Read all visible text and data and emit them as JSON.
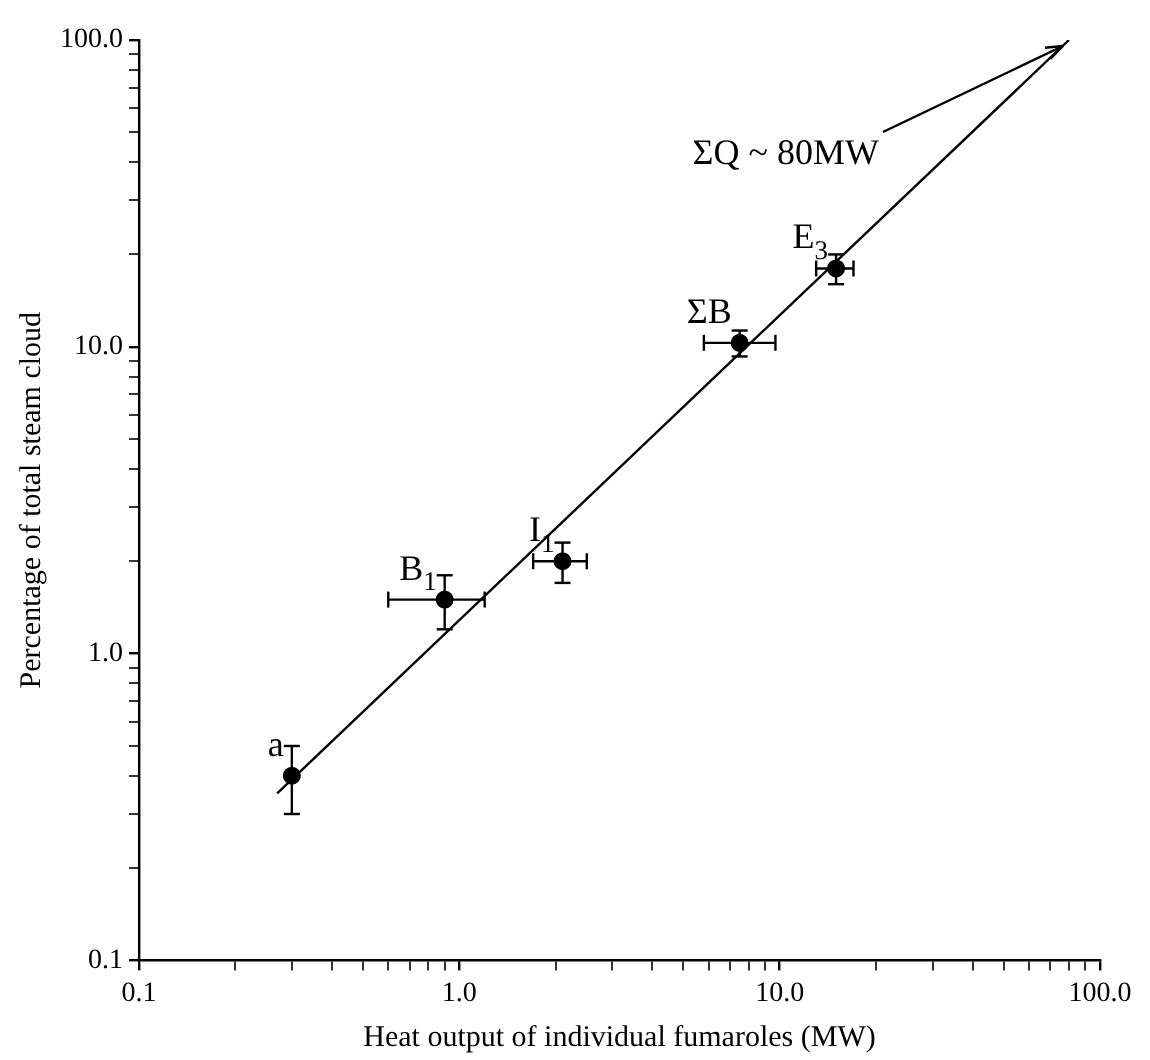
{
  "chart_data": {
    "type": "scatter",
    "xlabel": "Heat output of individual fumaroles (MW)",
    "ylabel": "Percentage of total steam cloud",
    "log": "xy",
    "grid": false,
    "legend": false,
    "marker": "circle",
    "xlim": [
      0.1,
      100
    ],
    "ylim": [
      0.1,
      100
    ],
    "xticks": [
      {
        "value": 0.1,
        "label": "0.1"
      },
      {
        "value": 0.2,
        "label": null
      },
      {
        "value": 0.3,
        "label": null
      },
      {
        "value": 0.4,
        "label": null
      },
      {
        "value": 0.5,
        "label": null
      },
      {
        "value": 0.6,
        "label": null
      },
      {
        "value": 0.7,
        "label": null
      },
      {
        "value": 0.8,
        "label": null
      },
      {
        "value": 0.9,
        "label": null
      },
      {
        "value": 1,
        "label": "1.0"
      },
      {
        "value": 2,
        "label": null
      },
      {
        "value": 3,
        "label": null
      },
      {
        "value": 4,
        "label": null
      },
      {
        "value": 5,
        "label": null
      },
      {
        "value": 6,
        "label": null
      },
      {
        "value": 7,
        "label": null
      },
      {
        "value": 8,
        "label": null
      },
      {
        "value": 9,
        "label": null
      },
      {
        "value": 10,
        "label": "10.0"
      },
      {
        "value": 20,
        "label": null
      },
      {
        "value": 30,
        "label": null
      },
      {
        "value": 40,
        "label": null
      },
      {
        "value": 50,
        "label": null
      },
      {
        "value": 60,
        "label": null
      },
      {
        "value": 70,
        "label": null
      },
      {
        "value": 80,
        "label": null
      },
      {
        "value": 90,
        "label": null
      },
      {
        "value": 100,
        "label": "100.0"
      }
    ],
    "yticks": [
      {
        "value": 0.1,
        "label": "0.1"
      },
      {
        "value": 0.2,
        "label": null
      },
      {
        "value": 0.3,
        "label": null
      },
      {
        "value": 0.4,
        "label": null
      },
      {
        "value": 0.5,
        "label": null
      },
      {
        "value": 0.6,
        "label": null
      },
      {
        "value": 0.7,
        "label": null
      },
      {
        "value": 0.8,
        "label": null
      },
      {
        "value": 0.9,
        "label": null
      },
      {
        "value": 1,
        "label": "1.0"
      },
      {
        "value": 2,
        "label": null
      },
      {
        "value": 3,
        "label": null
      },
      {
        "value": 4,
        "label": null
      },
      {
        "value": 5,
        "label": null
      },
      {
        "value": 6,
        "label": null
      },
      {
        "value": 7,
        "label": null
      },
      {
        "value": 8,
        "label": null
      },
      {
        "value": 9,
        "label": null
      },
      {
        "value": 10,
        "label": "10.0"
      },
      {
        "value": 20,
        "label": null
      },
      {
        "value": 30,
        "label": null
      },
      {
        "value": 40,
        "label": null
      },
      {
        "value": 50,
        "label": null
      },
      {
        "value": 60,
        "label": null
      },
      {
        "value": 70,
        "label": null
      },
      {
        "value": 80,
        "label": null
      },
      {
        "value": 90,
        "label": null
      },
      {
        "value": 100,
        "label": "100.0"
      }
    ],
    "series": [
      {
        "color": "#000000",
        "x": [
          0.3,
          0.9,
          2.1,
          7.5,
          15
        ],
        "values": [
          0.4,
          1.5,
          2.0,
          10.3,
          18
        ],
        "errors": [
          [
            0.3,
            0.5
          ],
          [
            1.2,
            1.8
          ],
          [
            1.7,
            2.3
          ],
          [
            9.3,
            11.3
          ],
          [
            16,
            20
          ]
        ],
        "xerrors": [
          null,
          [
            0.6,
            1.2
          ],
          [
            1.7,
            2.5
          ],
          [
            5.8,
            9.7
          ],
          [
            13,
            17
          ]
        ]
      },
      {
        "type": "line",
        "color": "#000000",
        "marker": "none",
        "x": [
          0.27,
          80
        ],
        "values": [
          0.35,
          100
        ]
      }
    ],
    "annotations": [
      {
        "text": "a",
        "x": 0.3,
        "y": 0.4
      },
      {
        "text": "B$_{1}$",
        "x": 0.9,
        "y": 1.5
      },
      {
        "text": "I$_{1}$",
        "x": 2.1,
        "y": 2.0
      },
      {
        "text": "ΣB",
        "x": 7.5,
        "y": 10.3
      },
      {
        "text": "E$_{3}$",
        "x": 15,
        "y": 18
      },
      {
        "text": "ΣQ ~ 80MW",
        "x": 80,
        "y": 100
      }
    ]
  }
}
